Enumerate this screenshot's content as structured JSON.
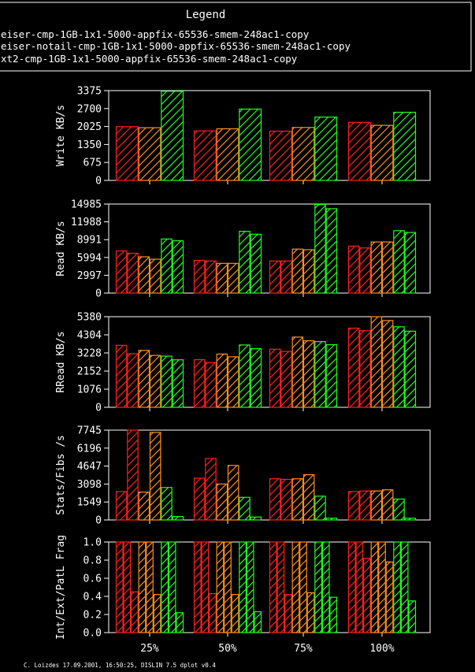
{
  "legend": {
    "title": "Legend",
    "items": [
      {
        "label": "eiser-cmp-1GB-1x1-5000-appfix-65536-smem-248ac1-copy",
        "color": "#ff2020"
      },
      {
        "label": "eiser-notail-cmp-1GB-1x1-5000-appfix-65536-smem-248ac1-copy",
        "color": "#ff9020"
      },
      {
        "label": "xt2-cmp-1GB-1x1-5000-appfix-65536-smem-248ac1-copy",
        "color": "#20ff20"
      }
    ]
  },
  "footer": "C. Loizdes 17.09.2001, 16:50:25, DISLIN 7.5 dplot v0.4",
  "chart_data": [
    {
      "type": "bar",
      "ylabel": "Write KB/s",
      "ylim": [
        0,
        3375
      ],
      "yticks": [
        "0",
        "675",
        "1350",
        "2025",
        "2700",
        "3375"
      ],
      "categories": [
        "25%",
        "50%",
        "75%",
        "100%"
      ],
      "series": [
        {
          "color": "#ff2020",
          "values": [
            [
              2020
            ],
            [
              1860
            ],
            [
              1850
            ],
            [
              2180
            ]
          ]
        },
        {
          "color": "#ff9020",
          "values": [
            [
              1980
            ],
            [
              1940
            ],
            [
              1990
            ],
            [
              2070
            ]
          ]
        },
        {
          "color": "#20ff20",
          "values": [
            [
              3350
            ],
            [
              2680
            ],
            [
              2380
            ],
            [
              2560
            ]
          ]
        }
      ]
    },
    {
      "type": "bar",
      "ylabel": "Read KB/s",
      "ylim": [
        0,
        14985
      ],
      "yticks": [
        "0",
        "2997",
        "5994",
        "8991",
        "11988",
        "14985"
      ],
      "categories": [
        "25%",
        "50%",
        "75%",
        "100%"
      ],
      "series": [
        {
          "color": "#ff2020",
          "values": [
            [
              7100,
              6700
            ],
            [
              5500,
              5400
            ],
            [
              5400,
              5400
            ],
            [
              7900,
              7600
            ]
          ]
        },
        {
          "color": "#ff9020",
          "values": [
            [
              6100,
              5700
            ],
            [
              5000,
              5000
            ],
            [
              7400,
              7300
            ],
            [
              8600,
              8600
            ]
          ]
        },
        {
          "color": "#20ff20",
          "values": [
            [
              9100,
              8800
            ],
            [
              10400,
              9900
            ],
            [
              14900,
              14200
            ],
            [
              10500,
              10200
            ]
          ]
        }
      ]
    },
    {
      "type": "bar",
      "ylabel": "RRead KB/s",
      "ylim": [
        0,
        5380
      ],
      "yticks": [
        "0",
        "1076",
        "2152",
        "3228",
        "4304",
        "5380"
      ],
      "categories": [
        "25%",
        "50%",
        "75%",
        "100%"
      ],
      "series": [
        {
          "color": "#ff2020",
          "values": [
            [
              3680,
              3180
            ],
            [
              2830,
              2660
            ],
            [
              3450,
              3320
            ],
            [
              4700,
              4550
            ]
          ]
        },
        {
          "color": "#ff9020",
          "values": [
            [
              3380,
              3080
            ],
            [
              3160,
              3000
            ],
            [
              4170,
              3950
            ],
            [
              5380,
              5150
            ]
          ]
        },
        {
          "color": "#20ff20",
          "values": [
            [
              3040,
              2820
            ],
            [
              3700,
              3480
            ],
            [
              3900,
              3720
            ],
            [
              4780,
              4520
            ]
          ]
        }
      ]
    },
    {
      "type": "bar",
      "ylabel": "Stats/Fibs /s",
      "ylim": [
        0,
        7745
      ],
      "yticks": [
        "0",
        "1549",
        "3098",
        "4647",
        "6196",
        "7745"
      ],
      "categories": [
        "25%",
        "50%",
        "75%",
        "100%"
      ],
      "series": [
        {
          "color": "#ff2020",
          "values": [
            [
              2450,
              7750
            ],
            [
              3600,
              5300
            ],
            [
              3550,
              3500
            ],
            [
              2450,
              2500
            ]
          ]
        },
        {
          "color": "#ff9020",
          "values": [
            [
              2400,
              7550
            ],
            [
              3100,
              4700
            ],
            [
              3550,
              3900
            ],
            [
              2500,
              2600
            ]
          ]
        },
        {
          "color": "#20ff20",
          "values": [
            [
              2800,
              300
            ],
            [
              1950,
              250
            ],
            [
              2050,
              150
            ],
            [
              1800,
              150
            ]
          ]
        }
      ]
    },
    {
      "type": "bar",
      "ylabel": "Int/Ext/PatL Frag",
      "ylim": [
        0,
        1.0
      ],
      "yticks": [
        "0.0",
        "0.2",
        "0.4",
        "0.6",
        "0.8",
        "1.0"
      ],
      "xlabel_ticks": [
        "25%",
        "50%",
        "75%",
        "100%"
      ],
      "categories": [
        "25%",
        "50%",
        "75%",
        "100%"
      ],
      "series": [
        {
          "color": "#ff2020",
          "values": [
            [
              1.0,
              1.0,
              0.45
            ],
            [
              1.0,
              1.0,
              0.43
            ],
            [
              1.0,
              1.0,
              0.42
            ],
            [
              1.0,
              1.0,
              0.82
            ]
          ]
        },
        {
          "color": "#ff9020",
          "values": [
            [
              1.0,
              1.0,
              0.42
            ],
            [
              1.0,
              1.0,
              0.42
            ],
            [
              1.0,
              1.0,
              0.44
            ],
            [
              1.0,
              1.0,
              0.78
            ]
          ]
        },
        {
          "color": "#20ff20",
          "values": [
            [
              1.0,
              1.0,
              0.22
            ],
            [
              1.0,
              1.0,
              0.23
            ],
            [
              1.0,
              1.0,
              0.39
            ],
            [
              1.0,
              1.0,
              0.35
            ]
          ]
        }
      ]
    }
  ]
}
